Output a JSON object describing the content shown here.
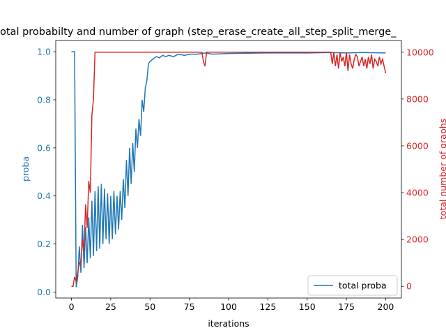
{
  "chart_data": {
    "type": "line",
    "title": "otal probabilty and number of graph (step_erase_create_all_step_split_merge_",
    "xlabel": "iterations",
    "ylabel": "proba",
    "y2label": "total number of graphs",
    "xlim": [
      -10,
      210
    ],
    "xticks": [
      0,
      25,
      50,
      75,
      100,
      125,
      150,
      175,
      200
    ],
    "ylim": [
      -0.025,
      1.047
    ],
    "yticks": [
      {
        "value": 0,
        "label": "0.0"
      },
      {
        "value": 0.2,
        "label": "0.2"
      },
      {
        "value": 0.4,
        "label": "0.4"
      },
      {
        "value": 0.6,
        "label": "0.6"
      },
      {
        "value": 0.8,
        "label": "0.8"
      },
      {
        "value": 1,
        "label": "1.0"
      }
    ],
    "y2lim": [
      -500,
      10500
    ],
    "y2ticks": [
      0,
      2000,
      4000,
      6000,
      8000,
      10000
    ],
    "legend": "lower right",
    "series": [
      {
        "name": "total proba",
        "color": "#1f77b4",
        "axis": "y",
        "x": [
          0,
          1,
          2,
          3,
          4,
          5,
          6,
          7,
          8,
          9,
          10,
          11,
          12,
          13,
          14,
          15,
          16,
          17,
          18,
          19,
          20,
          21,
          22,
          23,
          24,
          25,
          26,
          27,
          28,
          29,
          30,
          31,
          32,
          33,
          34,
          35,
          36,
          37,
          38,
          39,
          40,
          41,
          42,
          43,
          44,
          45,
          46,
          47,
          48,
          49,
          50,
          52,
          54,
          56,
          58,
          60,
          62,
          65,
          68,
          72,
          75,
          80,
          85,
          90,
          100,
          125,
          150,
          165,
          175,
          185,
          200
        ],
        "values": [
          1,
          1,
          1,
          0.02,
          0.06,
          0.19,
          0.08,
          0.28,
          0.1,
          0.27,
          0.12,
          0.31,
          0.14,
          0.38,
          0.15,
          0.42,
          0.17,
          0.44,
          0.18,
          0.45,
          0.2,
          0.43,
          0.22,
          0.41,
          0.2,
          0.4,
          0.22,
          0.42,
          0.24,
          0.4,
          0.26,
          0.42,
          0.3,
          0.47,
          0.35,
          0.55,
          0.4,
          0.6,
          0.45,
          0.62,
          0.5,
          0.68,
          0.6,
          0.72,
          0.65,
          0.8,
          0.75,
          0.85,
          0.88,
          0.95,
          0.96,
          0.97,
          0.98,
          0.975,
          0.985,
          0.98,
          0.985,
          0.98,
          0.99,
          0.985,
          0.99,
          0.99,
          0.995,
          0.99,
          0.993,
          0.995,
          0.995,
          0.997,
          0.995,
          0.997,
          0.995
        ]
      },
      {
        "color": "#d62728",
        "axis": "y2",
        "x": [
          0,
          1,
          2,
          3,
          4,
          5,
          6,
          7,
          8,
          9,
          10,
          11,
          12,
          13,
          14,
          15,
          83,
          84,
          85,
          86,
          165,
          166,
          167,
          168,
          169,
          170,
          171,
          172,
          173,
          174,
          175,
          176,
          177,
          178,
          179,
          180,
          181,
          182,
          183,
          184,
          185,
          186,
          187,
          188,
          189,
          190,
          191,
          192,
          193,
          194,
          195,
          196,
          197,
          198,
          199,
          200
        ],
        "values": [
          0,
          0,
          400,
          200,
          600,
          1000,
          900,
          2000,
          1500,
          3500,
          2500,
          4500,
          4000,
          7300,
          8000,
          10000,
          10000,
          9600,
          9400,
          10000,
          10000,
          9500,
          10000,
          9400,
          9900,
          9300,
          10000,
          9600,
          9800,
          9400,
          10000,
          9200,
          9900,
          9500,
          9300,
          9700,
          9900,
          9800,
          9400,
          9600,
          9800,
          9400,
          9700,
          9300,
          9800,
          9500,
          9900,
          9300,
          9700,
          9600,
          9400,
          9800,
          9500,
          9700,
          9400,
          9100
        ]
      }
    ]
  }
}
